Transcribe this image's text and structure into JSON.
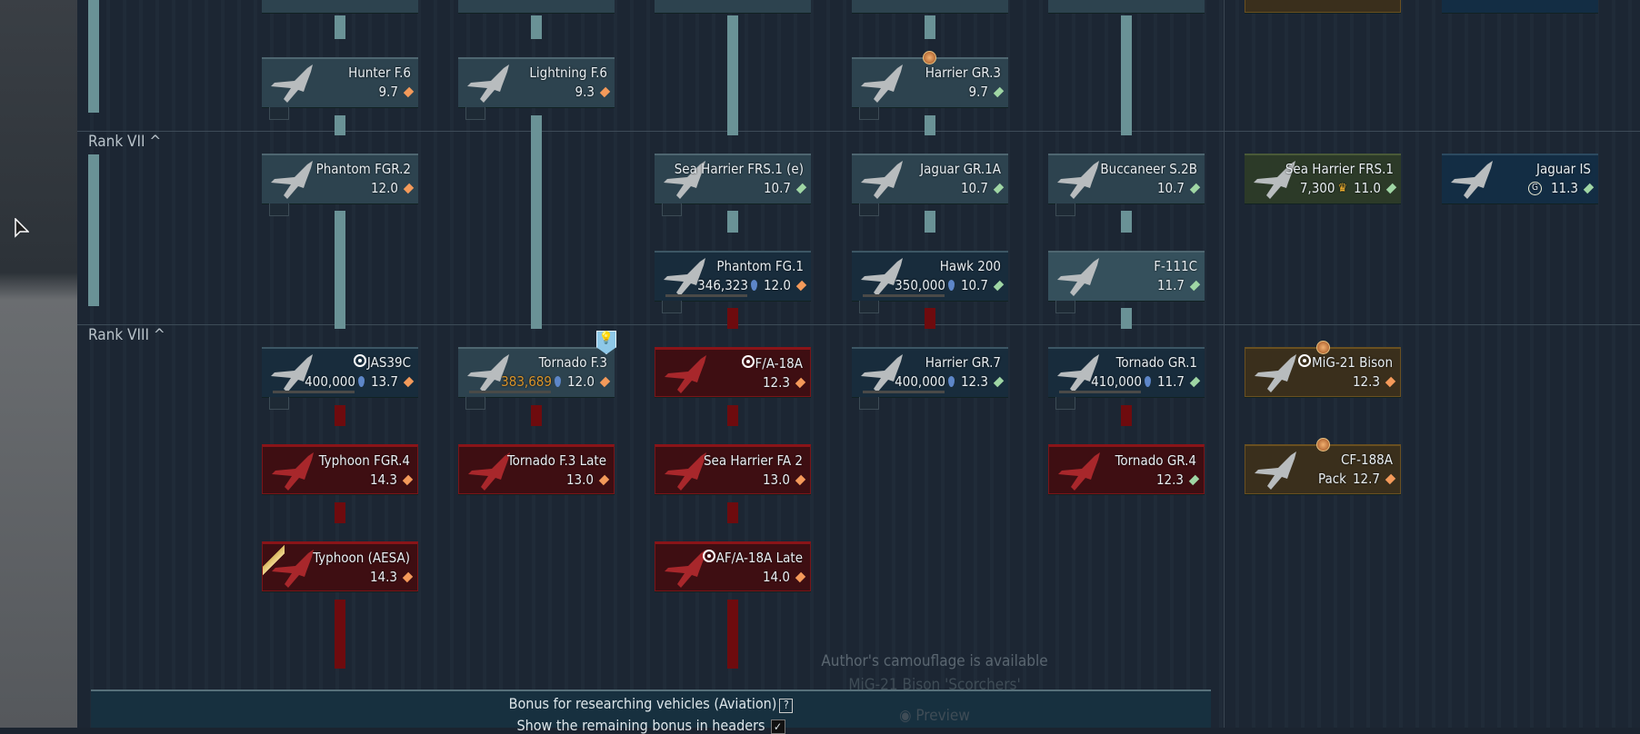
{
  "ranks": [
    {
      "label": "Rank VII",
      "collapse_icon": "chevron-up-icon"
    },
    {
      "label": "Rank VIII",
      "collapse_icon": "chevron-up-icon"
    }
  ],
  "colors": {
    "researched": "#2d434f",
    "researching": "#182c3c",
    "locked": "#3e0e12",
    "premium": "#2c3a28",
    "squadron": "#3a2f1c",
    "arrow_teal": "#6a9296",
    "arrow_red": "#6e0b0e",
    "br_orange": "#f49a5a",
    "br_green": "#9fd6a4"
  },
  "vehicles": [
    {
      "name": "Hunter F.6",
      "br": "9.7",
      "br_color": "orange",
      "status": "researched"
    },
    {
      "name": "Lightning F.6",
      "br": "9.3",
      "br_color": "orange",
      "status": "researched"
    },
    {
      "name": "Harrier GR.3",
      "br": "9.7",
      "br_color": "green",
      "status": "researched",
      "badge": "medal-icon"
    },
    {
      "name": "Phantom FGR.2",
      "br": "12.0",
      "br_color": "orange",
      "status": "researched"
    },
    {
      "name": "Sea Harrier FRS.1 (e)",
      "br": "10.7",
      "br_color": "green",
      "status": "researched"
    },
    {
      "name": "Jaguar GR.1A",
      "br": "10.7",
      "br_color": "green",
      "status": "researched"
    },
    {
      "name": "Buccaneer S.2B",
      "br": "10.7",
      "br_color": "green",
      "status": "researched"
    },
    {
      "name": "Sea Harrier FRS.1",
      "price": "7,300",
      "price_icon": "golden-eagle-icon",
      "br": "11.0",
      "br_color": "green",
      "status": "premium"
    },
    {
      "name": "Jaguar IS",
      "price_icon": "gaijin-coin-icon",
      "br": "11.3",
      "br_color": "green",
      "status": "shop"
    },
    {
      "name": "Phantom FG.1",
      "cost": "346,323",
      "br": "12.0",
      "br_color": "orange",
      "status": "researching"
    },
    {
      "name": "Hawk 200",
      "cost": "350,000",
      "br": "10.7",
      "br_color": "green",
      "status": "researching"
    },
    {
      "name": "F-111C",
      "br": "11.7",
      "br_color": "green",
      "status": "light"
    },
    {
      "name": "JAS39C",
      "cost": "400,000",
      "br": "13.7",
      "br_color": "orange",
      "status": "researching",
      "marker": "target-icon"
    },
    {
      "name": "Tornado F.3",
      "cost": "383,689",
      "cost_warn": true,
      "br": "12.0",
      "br_color": "orange",
      "status": "researched",
      "badge": "bulb-icon"
    },
    {
      "name": "F/A-18A",
      "br": "12.3",
      "br_color": "orange",
      "status": "locked",
      "marker": "target-icon"
    },
    {
      "name": "Harrier GR.7",
      "cost": "400,000",
      "br": "12.3",
      "br_color": "green",
      "status": "researching"
    },
    {
      "name": "Tornado GR.1",
      "cost": "410,000",
      "br": "11.7",
      "br_color": "green",
      "status": "researching"
    },
    {
      "name": "MiG-21 Bison",
      "br": "12.3",
      "br_color": "orange",
      "status": "squad",
      "marker": "target-icon",
      "badge": "medal-icon"
    },
    {
      "name": "Typhoon FGR.4",
      "br": "14.3",
      "br_color": "orange",
      "status": "locked"
    },
    {
      "name": "Tornado F.3 Late",
      "br": "13.0",
      "br_color": "orange",
      "status": "locked"
    },
    {
      "name": "Sea Harrier FA 2",
      "br": "13.0",
      "br_color": "orange",
      "status": "locked"
    },
    {
      "name": "Tornado GR.4",
      "br": "12.3",
      "br_color": "green",
      "status": "locked"
    },
    {
      "name": "CF-188A",
      "price": "Pack",
      "br": "12.7",
      "br_color": "orange",
      "status": "squad",
      "badge": "medal-icon"
    },
    {
      "name": "Typhoon (AESA)",
      "br": "14.3",
      "br_color": "orange",
      "status": "locked",
      "badge": "gold-stripe"
    },
    {
      "name": "AF/A-18A Late",
      "br": "14.0",
      "br_color": "orange",
      "status": "locked",
      "marker": "target-icon"
    }
  ],
  "bottom": {
    "bonus_label": "Bonus for researching vehicles (Aviation)",
    "help": "?",
    "show_bonus_label": "Show the remaining bonus in headers",
    "checkbox_checked": true
  },
  "camouflage": {
    "line1": "Author's camouflage is available",
    "line2": "MiG-21 Bison 'Scorchers'",
    "preview": "Preview"
  }
}
